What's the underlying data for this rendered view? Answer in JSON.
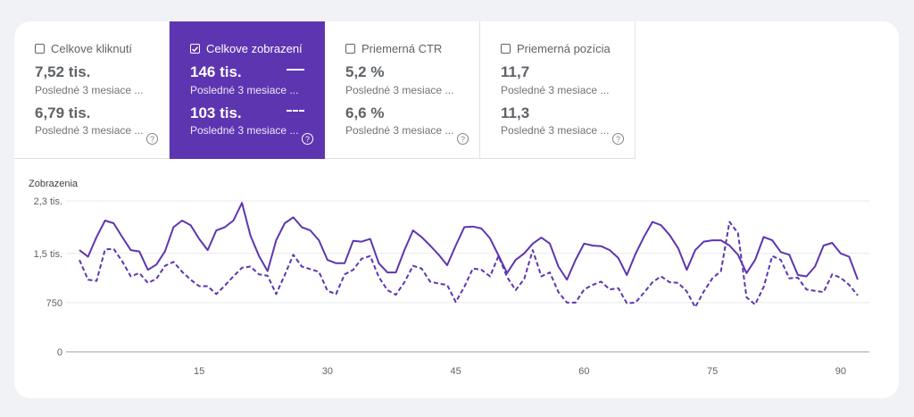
{
  "tiles": [
    {
      "label": "Celkove kliknutí",
      "checked": false,
      "value1": "7,52 tis.",
      "sub1": "Posledné 3 mesiace ...",
      "value2": "6,79 tis.",
      "sub2": "Posledné 3 mesiace ..."
    },
    {
      "label": "Celkove zobrazení",
      "checked": true,
      "value1": "146 tis.",
      "sub1": "Posledné 3 mesiace ...",
      "value2": "103 tis.",
      "sub2": "Posledné 3 mesiace ..."
    },
    {
      "label": "Priemerná CTR",
      "checked": false,
      "value1": "5,2 %",
      "sub1": "Posledné 3 mesiace ...",
      "value2": "6,6 %",
      "sub2": "Posledné 3 mesiace ..."
    },
    {
      "label": "Priemerná pozícia",
      "checked": false,
      "value1": "11,7",
      "sub1": "Posledné 3 mesiace ...",
      "value2": "11,3",
      "sub2": "Posledné 3 mesiace ..."
    }
  ],
  "help_glyph": "?",
  "colors": {
    "accent": "#5e35b1",
    "line": "#5e35b1"
  },
  "chart_data": {
    "type": "line",
    "ylabel": "Zobrazenia",
    "ylim": [
      0,
      2300
    ],
    "ytick_values": [
      0,
      750,
      1500,
      2300
    ],
    "ytick_labels": [
      "0",
      "750",
      "1,5 tis.",
      "2,3 tis."
    ],
    "xtick_values": [
      15,
      30,
      45,
      60,
      75,
      90
    ],
    "xtick_labels": [
      "15",
      "30",
      "45",
      "60",
      "75",
      "90"
    ],
    "xlim": [
      0,
      93
    ],
    "grid": true,
    "series": [
      {
        "style": "solid",
        "values": [
          1550,
          1450,
          1750,
          2000,
          1960,
          1750,
          1550,
          1530,
          1250,
          1330,
          1530,
          1900,
          2000,
          1930,
          1720,
          1550,
          1850,
          1900,
          2000,
          2270,
          1770,
          1460,
          1230,
          1700,
          1960,
          2050,
          1900,
          1850,
          1700,
          1400,
          1350,
          1350,
          1690,
          1680,
          1720,
          1350,
          1210,
          1210,
          1550,
          1850,
          1750,
          1620,
          1480,
          1320,
          1620,
          1900,
          1910,
          1880,
          1730,
          1470,
          1200,
          1400,
          1500,
          1650,
          1740,
          1650,
          1300,
          1100,
          1400,
          1650,
          1620,
          1610,
          1550,
          1430,
          1170,
          1490,
          1750,
          1980,
          1930,
          1780,
          1580,
          1250,
          1550,
          1680,
          1700,
          1700,
          1620,
          1480,
          1200,
          1400,
          1750,
          1700,
          1520,
          1480,
          1170,
          1150,
          1300,
          1620,
          1660,
          1500,
          1450,
          1100
        ]
      },
      {
        "style": "dashed",
        "values": [
          1400,
          1100,
          1080,
          1560,
          1570,
          1380,
          1150,
          1200,
          1050,
          1110,
          1310,
          1370,
          1220,
          1100,
          1000,
          1000,
          880,
          1010,
          1150,
          1280,
          1300,
          1180,
          1160,
          880,
          1170,
          1480,
          1300,
          1260,
          1220,
          930,
          880,
          1180,
          1250,
          1420,
          1460,
          1140,
          940,
          870,
          1060,
          1310,
          1270,
          1070,
          1040,
          1020,
          760,
          990,
          1270,
          1250,
          1150,
          1460,
          1140,
          940,
          1110,
          1550,
          1150,
          1210,
          910,
          750,
          750,
          950,
          1020,
          1070,
          950,
          970,
          740,
          750,
          900,
          1060,
          1150,
          1060,
          1050,
          920,
          680,
          920,
          1120,
          1230,
          1980,
          1810,
          830,
          720,
          990,
          1460,
          1400,
          1120,
          1130,
          950,
          930,
          910,
          1180,
          1130,
          1020,
          860
        ]
      }
    ]
  }
}
